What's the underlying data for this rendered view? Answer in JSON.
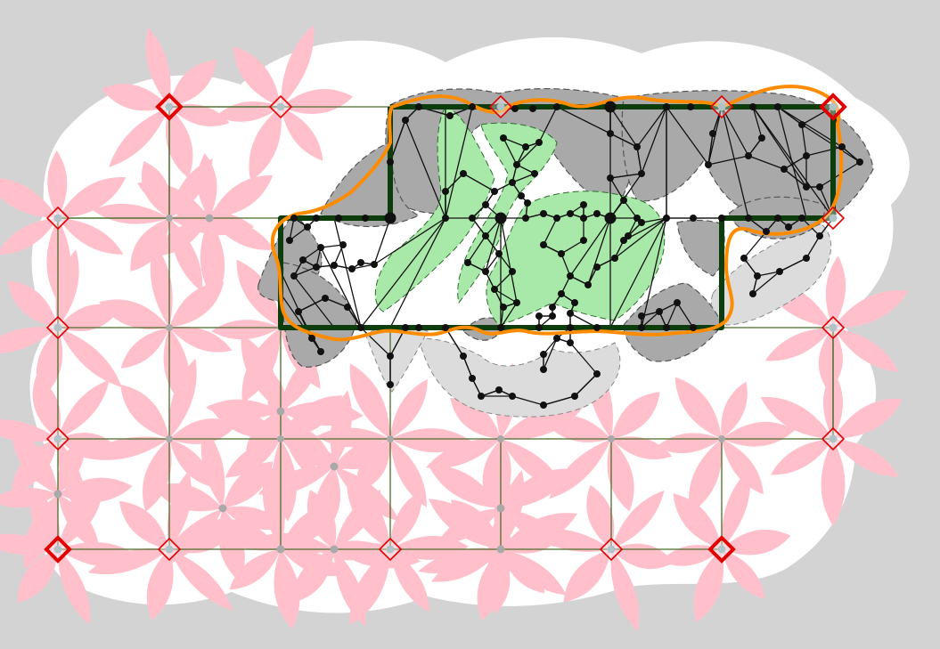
{
  "colors": {
    "background": "#d3d3d3",
    "white_region": "#ffffff",
    "petal_fill": "#ffc0cb",
    "grid_edge": "#4a6b2a",
    "grid_node": "#a9a9a9",
    "terminal_fill": "#b0c4c8",
    "terminal_stroke": "#e00000",
    "cluster_dark": "#a9a9a9",
    "cluster_light": "#dcdcdc",
    "cluster_green": "#a8e8a8",
    "boundary_edge": "#0d3d0d",
    "outline": "#ff8c00",
    "graph_node": "#111111"
  },
  "grid": {
    "columns": 8,
    "rows": 5,
    "extra_nodes": 9
  },
  "terminals": {
    "major_count": 5,
    "minor_count": 10
  },
  "clusters": {
    "green_regions": 3,
    "dark_regions": 9,
    "light_regions": 3
  }
}
